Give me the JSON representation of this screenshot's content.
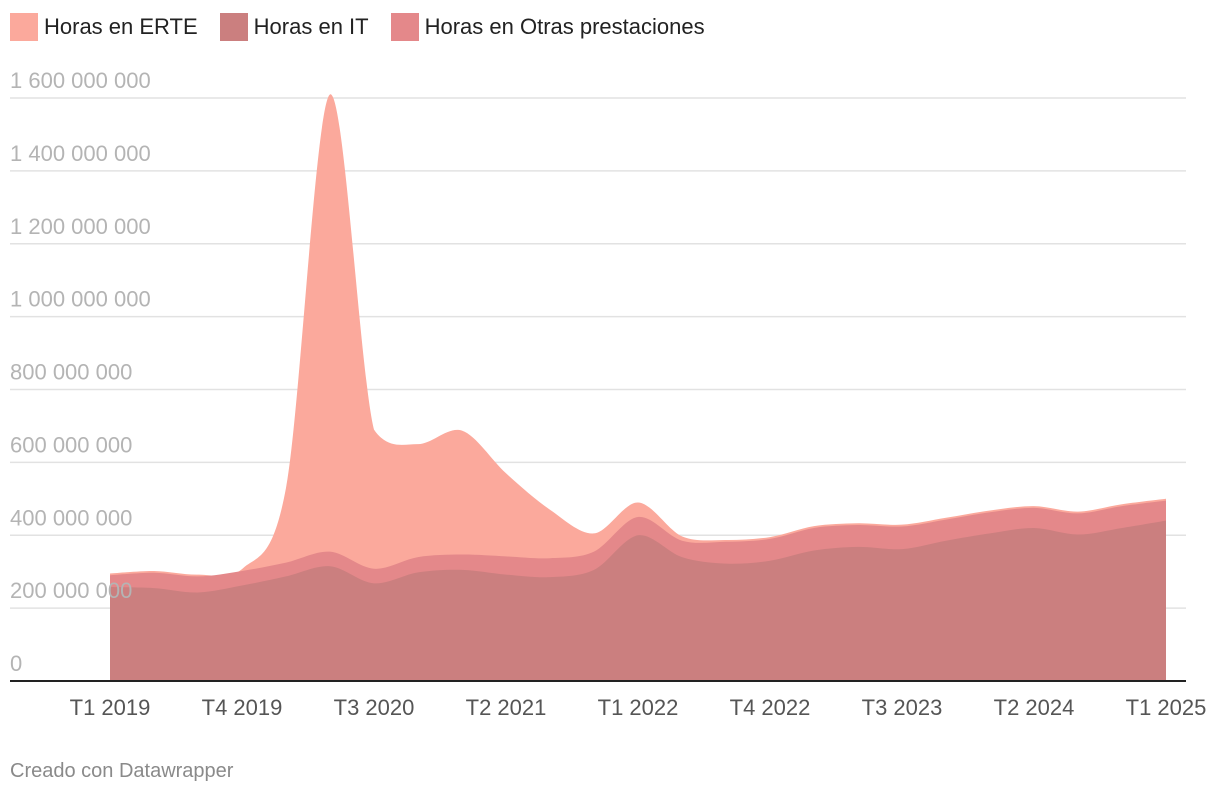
{
  "chart_data": {
    "type": "area",
    "stacked": true,
    "legend_position": "top-left",
    "grid": true,
    "ylim": [
      0,
      1600000000
    ],
    "y_ticks": [
      0,
      200000000,
      400000000,
      600000000,
      800000000,
      1000000000,
      1200000000,
      1400000000,
      1600000000
    ],
    "y_tick_labels": [
      "0",
      "200 000 000",
      "400 000 000",
      "600 000 000",
      "800 000 000",
      "1 000 000 000",
      "1 200 000 000",
      "1 400 000 000",
      "1 600 000 000"
    ],
    "x": [
      "T1 2019",
      "T2 2019",
      "T3 2019",
      "T4 2019",
      "T1 2020",
      "T2 2020",
      "T3 2020",
      "T4 2020",
      "T1 2021",
      "T2 2021",
      "T3 2021",
      "T4 2021",
      "T1 2022",
      "T2 2022",
      "T3 2022",
      "T4 2022",
      "T1 2023",
      "T2 2023",
      "T3 2023",
      "T4 2023",
      "T1 2024",
      "T2 2024",
      "T3 2024",
      "T4 2024",
      "T1 2025"
    ],
    "x_tick_labels": [
      "T1 2019",
      "T4 2019",
      "T3 2020",
      "T2 2021",
      "T1 2022",
      "T4 2022",
      "T3 2023",
      "T2 2024",
      "T1 2025"
    ],
    "series": [
      {
        "name": "Horas en IT",
        "color": "#cb7f7f",
        "values": [
          258000000,
          255000000,
          243000000,
          262000000,
          287000000,
          315000000,
          268000000,
          298000000,
          305000000,
          292000000,
          285000000,
          305000000,
          400000000,
          340000000,
          322000000,
          330000000,
          358000000,
          368000000,
          362000000,
          385000000,
          405000000,
          420000000,
          402000000,
          420000000,
          440000000
        ]
      },
      {
        "name": "Horas en Otras prestaciones",
        "color": "#e4888a",
        "values": [
          32000000,
          42000000,
          44000000,
          40000000,
          38000000,
          40000000,
          40000000,
          42000000,
          42000000,
          50000000,
          52000000,
          50000000,
          50000000,
          45000000,
          60000000,
          60000000,
          62000000,
          60000000,
          62000000,
          58000000,
          58000000,
          55000000,
          58000000,
          60000000,
          55000000
        ]
      },
      {
        "name": "Horas en ERTE",
        "color": "#fba99c",
        "values": [
          5000000,
          5000000,
          5000000,
          5000000,
          205000000,
          1255000000,
          382000000,
          310000000,
          340000000,
          228000000,
          133000000,
          50000000,
          40000000,
          12000000,
          5000000,
          5000000,
          5000000,
          5000000,
          5000000,
          5000000,
          5000000,
          5000000,
          5000000,
          5000000,
          5000000
        ]
      }
    ],
    "credit": "Creado con Datawrapper"
  }
}
